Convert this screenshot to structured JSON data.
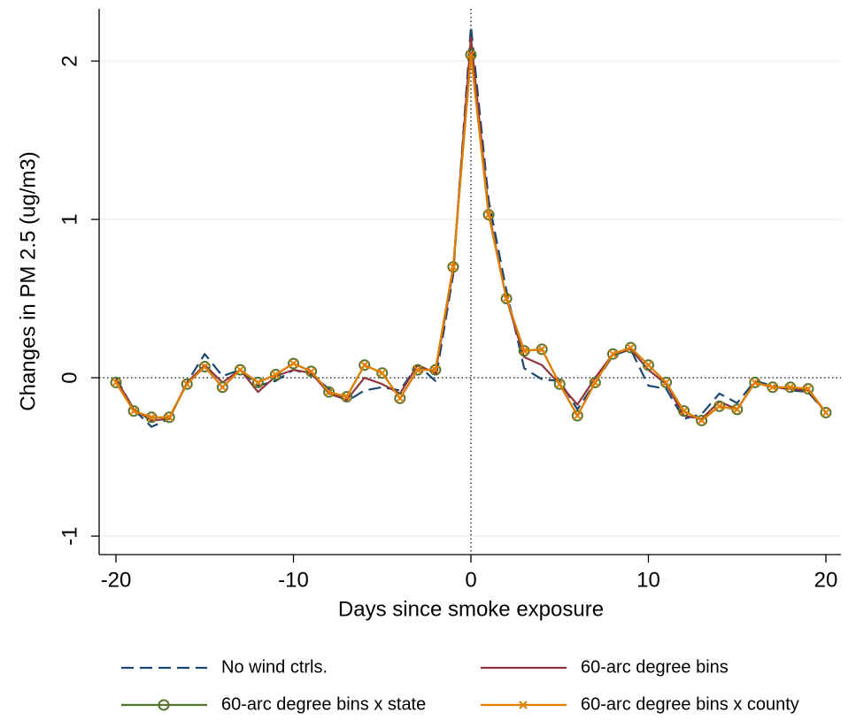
{
  "chart_data": {
    "type": "line",
    "x_label": "Days since smoke exposure",
    "y_label": "Changes in PM 2.5 (ug/m3)",
    "x": [
      -20,
      -19,
      -18,
      -17,
      -16,
      -15,
      -14,
      -13,
      -12,
      -11,
      -10,
      -9,
      -8,
      -7,
      -6,
      -5,
      -4,
      -3,
      -2,
      -1,
      0,
      1,
      2,
      3,
      4,
      5,
      6,
      7,
      8,
      9,
      10,
      11,
      12,
      13,
      14,
      15,
      16,
      17,
      18,
      19,
      20
    ],
    "series": [
      {
        "name": "No wind ctrls.",
        "color": "#1a476f",
        "dash": true,
        "marker": "none",
        "values": [
          0.0,
          -0.2,
          -0.31,
          -0.26,
          -0.03,
          0.15,
          0.01,
          0.05,
          -0.05,
          -0.02,
          0.05,
          0.02,
          -0.07,
          -0.15,
          -0.08,
          -0.06,
          -0.08,
          0.08,
          -0.02,
          0.65,
          2.22,
          1.12,
          0.55,
          0.06,
          -0.01,
          -0.02,
          -0.2,
          -0.03,
          0.14,
          0.18,
          -0.05,
          -0.07,
          -0.26,
          -0.23,
          -0.1,
          -0.16,
          -0.02,
          -0.05,
          -0.08,
          -0.09,
          -0.22
        ]
      },
      {
        "name": "60-arc degree bins",
        "color": "#90353b",
        "dash": false,
        "marker": "none",
        "values": [
          -0.01,
          -0.2,
          -0.27,
          -0.26,
          -0.03,
          0.08,
          -0.03,
          0.05,
          -0.09,
          0.01,
          0.05,
          0.03,
          -0.1,
          -0.14,
          0.0,
          -0.04,
          -0.1,
          0.08,
          0.03,
          0.68,
          2.15,
          1.05,
          0.5,
          0.13,
          0.08,
          -0.04,
          -0.17,
          0.0,
          0.15,
          0.18,
          0.05,
          -0.04,
          -0.24,
          -0.26,
          -0.15,
          -0.2,
          -0.03,
          -0.06,
          -0.07,
          -0.08,
          -0.22
        ]
      },
      {
        "name": "60-arc degree bins x state",
        "color": "#55752f",
        "dash": false,
        "marker": "circle",
        "values": [
          -0.03,
          -0.21,
          -0.25,
          -0.25,
          -0.04,
          0.07,
          -0.06,
          0.05,
          -0.03,
          0.02,
          0.09,
          0.04,
          -0.09,
          -0.12,
          0.08,
          0.03,
          -0.13,
          0.05,
          0.05,
          0.7,
          2.04,
          1.03,
          0.5,
          0.17,
          0.18,
          -0.04,
          -0.24,
          -0.03,
          0.15,
          0.19,
          0.08,
          -0.03,
          -0.21,
          -0.27,
          -0.18,
          -0.2,
          -0.03,
          -0.06,
          -0.06,
          -0.07,
          -0.22
        ]
      },
      {
        "name": "60-arc degree bins x county",
        "color": "#e37e00",
        "dash": false,
        "marker": "x",
        "values": [
          -0.03,
          -0.21,
          -0.25,
          -0.25,
          -0.04,
          0.07,
          -0.06,
          0.05,
          -0.03,
          0.02,
          0.09,
          0.04,
          -0.09,
          -0.12,
          0.08,
          0.03,
          -0.13,
          0.05,
          0.05,
          0.7,
          2.04,
          1.03,
          0.5,
          0.17,
          0.18,
          -0.04,
          -0.24,
          -0.03,
          0.15,
          0.19,
          0.08,
          -0.03,
          -0.21,
          -0.27,
          -0.18,
          -0.2,
          -0.03,
          -0.06,
          -0.06,
          -0.07,
          -0.22
        ]
      }
    ],
    "xlim": [
      -20.95,
      20.85
    ],
    "ylim": [
      -1.117,
      2.33
    ],
    "xticks": [
      -20,
      -10,
      0,
      10,
      20
    ],
    "yticks": [
      -1,
      0,
      1,
      2
    ],
    "grid": true,
    "xline": 0,
    "yline": 0,
    "legend": "bottom"
  }
}
